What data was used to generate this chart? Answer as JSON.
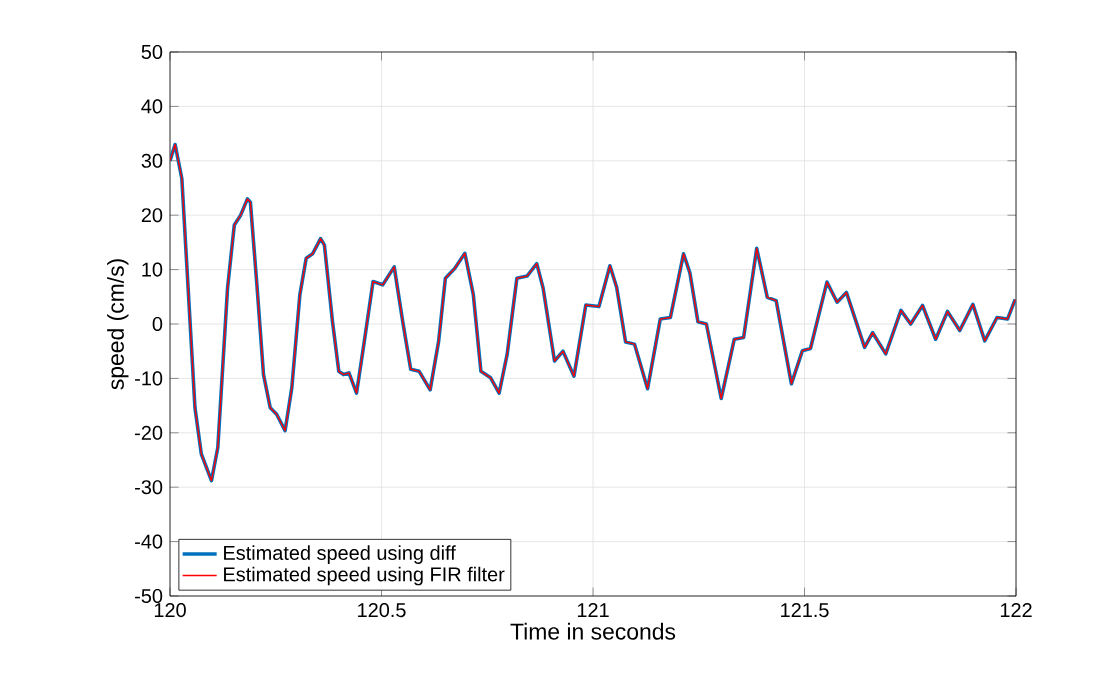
{
  "chart_data": {
    "type": "line",
    "xlabel": "Time in seconds",
    "ylabel": "speed (cm/s)",
    "xlim": [
      120,
      122
    ],
    "xticks": [
      120,
      120.5,
      121,
      121.5,
      122
    ],
    "ylim": [
      -50,
      50
    ],
    "yticks": [
      -50,
      -40,
      -30,
      -20,
      -10,
      0,
      10,
      20,
      30,
      40,
      50
    ],
    "grid": true,
    "legend": "bottom left",
    "marker": "none",
    "line_style": "solid",
    "x": [
      120,
      120.012,
      120.028,
      120.059,
      120.074,
      120.098,
      120.113,
      120.136,
      120.152,
      120.167,
      120.183,
      120.19,
      120.206,
      120.221,
      120.237,
      120.252,
      120.272,
      120.288,
      120.307,
      120.322,
      120.337,
      120.356,
      120.365,
      120.384,
      120.399,
      120.41,
      120.423,
      120.441,
      120.457,
      120.48,
      120.503,
      120.53,
      120.55,
      120.569,
      120.589,
      120.615,
      120.635,
      120.651,
      120.673,
      120.697,
      120.717,
      120.735,
      120.758,
      120.778,
      120.797,
      120.82,
      120.844,
      120.867,
      120.882,
      120.909,
      120.929,
      120.955,
      120.983,
      121.014,
      121.04,
      121.056,
      121.077,
      121.098,
      121.129,
      121.159,
      121.183,
      121.214,
      121.229,
      121.248,
      121.268,
      121.303,
      121.334,
      121.356,
      121.387,
      121.412,
      121.433,
      121.469,
      121.495,
      121.514,
      121.553,
      121.577,
      121.599,
      121.642,
      121.661,
      121.692,
      121.728,
      121.751,
      121.779,
      121.81,
      121.838,
      121.867,
      121.898,
      121.926,
      121.955,
      121.98,
      121.998
    ],
    "series": [
      {
        "name": "Estimated speed using diff",
        "color": "#0072bd",
        "values": [
          30,
          33,
          26.7,
          -15.4,
          -23.9,
          -28.8,
          -22.7,
          6.6,
          18.2,
          20,
          23,
          22.4,
          6.6,
          -9.3,
          -15.4,
          -16.6,
          -19.6,
          -11.7,
          5.4,
          12.1,
          12.9,
          15.7,
          14.5,
          0.5,
          -8.7,
          -9.3,
          -9,
          -12.7,
          -4.4,
          7.8,
          7.2,
          10.5,
          0.5,
          -8.3,
          -8.7,
          -12.1,
          -3.2,
          8.4,
          10.2,
          13,
          5.4,
          -8.7,
          -9.9,
          -12.7,
          -5.6,
          8.4,
          8.8,
          11.1,
          6.6,
          -6.8,
          -5,
          -9.6,
          3.5,
          3.2,
          10.7,
          6.7,
          -3.3,
          -3.7,
          -11.9,
          0.9,
          1.2,
          12.9,
          9.4,
          0.4,
          0,
          -13.7,
          -2.8,
          -2.5,
          13.9,
          4.9,
          4.3,
          -11,
          -4.9,
          -4.5,
          7.7,
          4,
          5.8,
          -4.3,
          -1.6,
          -5.5,
          2.5,
          0,
          3.4,
          -2.8,
          2.3,
          -1.2,
          3.6,
          -3.1,
          1.2,
          0.9,
          4.5
        ]
      },
      {
        "name": "Estimated speed using FIR filter",
        "color": "#ff0000",
        "values": [
          30,
          33,
          26.7,
          -15.4,
          -23.9,
          -28.8,
          -22.7,
          6.6,
          18.2,
          20,
          23,
          22.4,
          6.6,
          -9.3,
          -15.4,
          -16.6,
          -19.6,
          -11.7,
          5.4,
          12.1,
          12.9,
          15.7,
          14.5,
          0.5,
          -8.7,
          -9.3,
          -9,
          -12.7,
          -4.4,
          7.8,
          7.2,
          10.5,
          0.5,
          -8.3,
          -8.7,
          -12.1,
          -3.2,
          8.4,
          10.2,
          13,
          5.4,
          -8.7,
          -9.9,
          -12.7,
          -5.6,
          8.4,
          8.8,
          11.1,
          6.6,
          -6.8,
          -5,
          -9.6,
          3.5,
          3.2,
          10.7,
          6.7,
          -3.3,
          -3.7,
          -11.9,
          0.9,
          1.2,
          12.9,
          9.4,
          0.4,
          0,
          -13.7,
          -2.8,
          -2.5,
          13.9,
          4.9,
          4.3,
          -11,
          -4.9,
          -4.5,
          7.7,
          4,
          5.8,
          -4.3,
          -1.6,
          -5.5,
          2.5,
          0,
          3.4,
          -2.8,
          2.3,
          -1.2,
          3.6,
          -3.1,
          1.2,
          0.9,
          4.5
        ]
      }
    ]
  }
}
